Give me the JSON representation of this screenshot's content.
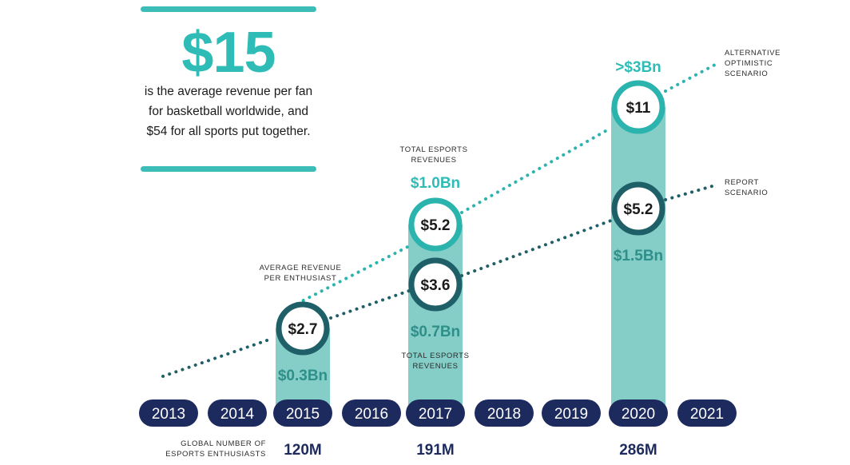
{
  "callout": {
    "big_number": "$15",
    "description": "is the average revenue per fan for basketball worldwide, and $54 for all sports put together."
  },
  "chart_data": {
    "type": "bar",
    "title": "",
    "categories": [
      "2013",
      "2014",
      "2015",
      "2016",
      "2017",
      "2018",
      "2019",
      "2020",
      "2021"
    ],
    "series": [
      {
        "name": "",
        "values": [
          null,
          null,
          0.3,
          null,
          0.7,
          null,
          null,
          1.5,
          null
        ]
      }
    ],
    "bar_labels": {
      "2015": "$0.3Bn",
      "2017": "$0.7Bn",
      "2020": "$1.5Bn"
    },
    "lines": [
      {
        "name": "REPORT SCENARIO",
        "markers": [
          {
            "year": "2015",
            "label": "$2.7"
          },
          {
            "year": "2017",
            "label": "$3.6"
          },
          {
            "year": "2020",
            "label": "$5.2"
          }
        ]
      },
      {
        "name": "ALTERNATIVE OPTIMISTIC SCENARIO",
        "markers": [
          {
            "year": "2017",
            "label": "$5.2"
          },
          {
            "year": "2020",
            "label": "$11"
          }
        ]
      }
    ],
    "upper_revenue_labels": [
      {
        "year": "2017",
        "label": "$1.0Bn"
      },
      {
        "year": "2020",
        "label": ">$3Bn"
      }
    ],
    "annotations": {
      "avg_revenue": "AVERAGE REVENUE PER ENTHUSIAST",
      "total_revenues_upper": "TOTAL ESPORTS REVENUES",
      "total_revenues_lower": "TOTAL ESPORTS REVENUES",
      "alt_scenario": "ALTERNATIVE OPTIMISTIC SCENARIO",
      "report_scenario": "REPORT SCENARIO"
    },
    "enthusiasts": {
      "label": "GLOBAL NUMBER OF ESPORTS ENTHUSIASTS",
      "values": [
        {
          "year": "2015",
          "label": "120M"
        },
        {
          "year": "2017",
          "label": "191M"
        },
        {
          "year": "2020",
          "label": "286M"
        }
      ]
    },
    "colors": {
      "bar": "#85cdc7",
      "pill": "#1d2a5e",
      "report_line": "#1f5f67",
      "alt_line": "#2bb3ae",
      "revenue_text": "#2f8f8a",
      "accent": "#2fbcb6"
    }
  }
}
